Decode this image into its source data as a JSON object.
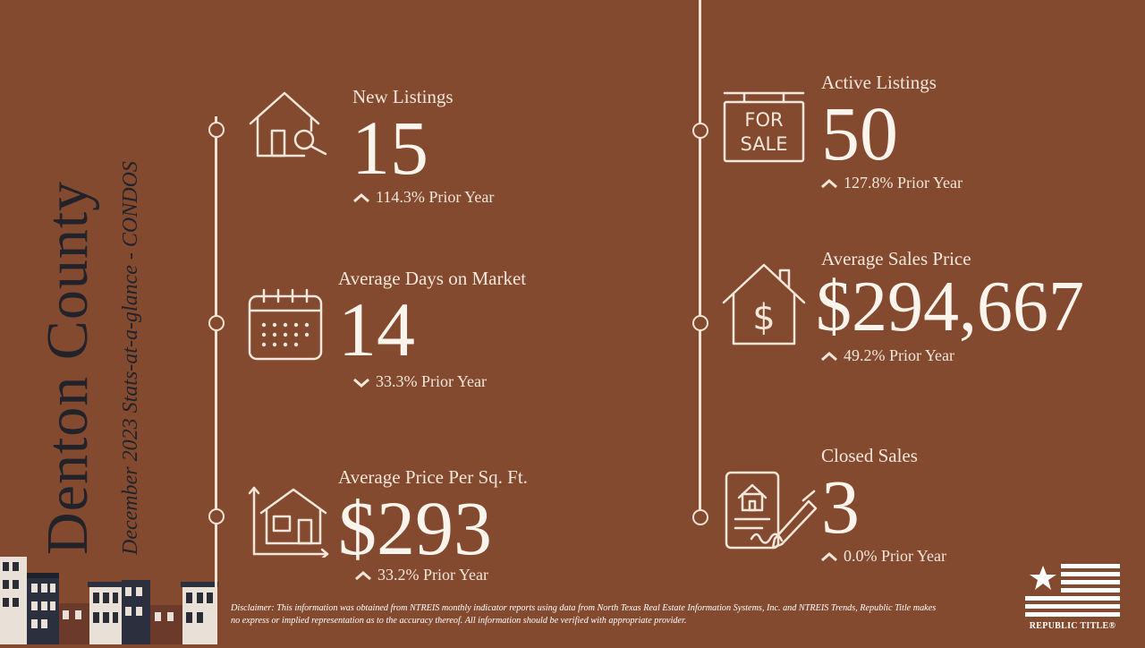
{
  "title": {
    "county": "Denton County",
    "subtitle": "December 2023 Stats-at-a-glance - CONDOS"
  },
  "stats": {
    "new_listings": {
      "label": "New Listings",
      "value": "15",
      "change": "114.3% Prior Year",
      "direction": "up",
      "icon": "house-search-icon"
    },
    "days_on_market": {
      "label": "Average Days on Market",
      "value": "14",
      "change": "33.3% Prior Year",
      "direction": "down",
      "icon": "calendar-icon"
    },
    "price_per_sqft": {
      "label": "Average Price Per Sq. Ft.",
      "value": "$293",
      "change": "33.2% Prior Year",
      "direction": "up",
      "icon": "house-dimensions-icon"
    },
    "active_listings": {
      "label": "Active Listings",
      "value": "50",
      "change": "127.8% Prior Year",
      "direction": "up",
      "icon": "for-sale-sign-icon"
    },
    "avg_sales_price": {
      "label": "Average Sales Price",
      "value": "$294,667",
      "change": "49.2% Prior Year",
      "direction": "up",
      "icon": "house-dollar-icon"
    },
    "closed_sales": {
      "label": "Closed Sales",
      "value": "3",
      "change": "0.0% Prior Year",
      "direction": "up",
      "icon": "signed-contract-icon"
    }
  },
  "for_sale_sign": {
    "line1": "FOR",
    "line2": "SALE"
  },
  "disclaimer": "Disclaimer: This information was obtained from NTREIS monthly indicator reports using data from North Texas Real Estate Information Systems, Inc. and NTREIS Trends, Republic Title makes no express or implied representation as to the accuracy thereof. All information should be verified with appropriate provider.",
  "logo": {
    "text": "REPUBLIC TITLE®",
    "icon": "star-flag-icon"
  },
  "colors": {
    "background": "#834a2f",
    "title": "#21222a",
    "foreground": "#f6ece2"
  }
}
